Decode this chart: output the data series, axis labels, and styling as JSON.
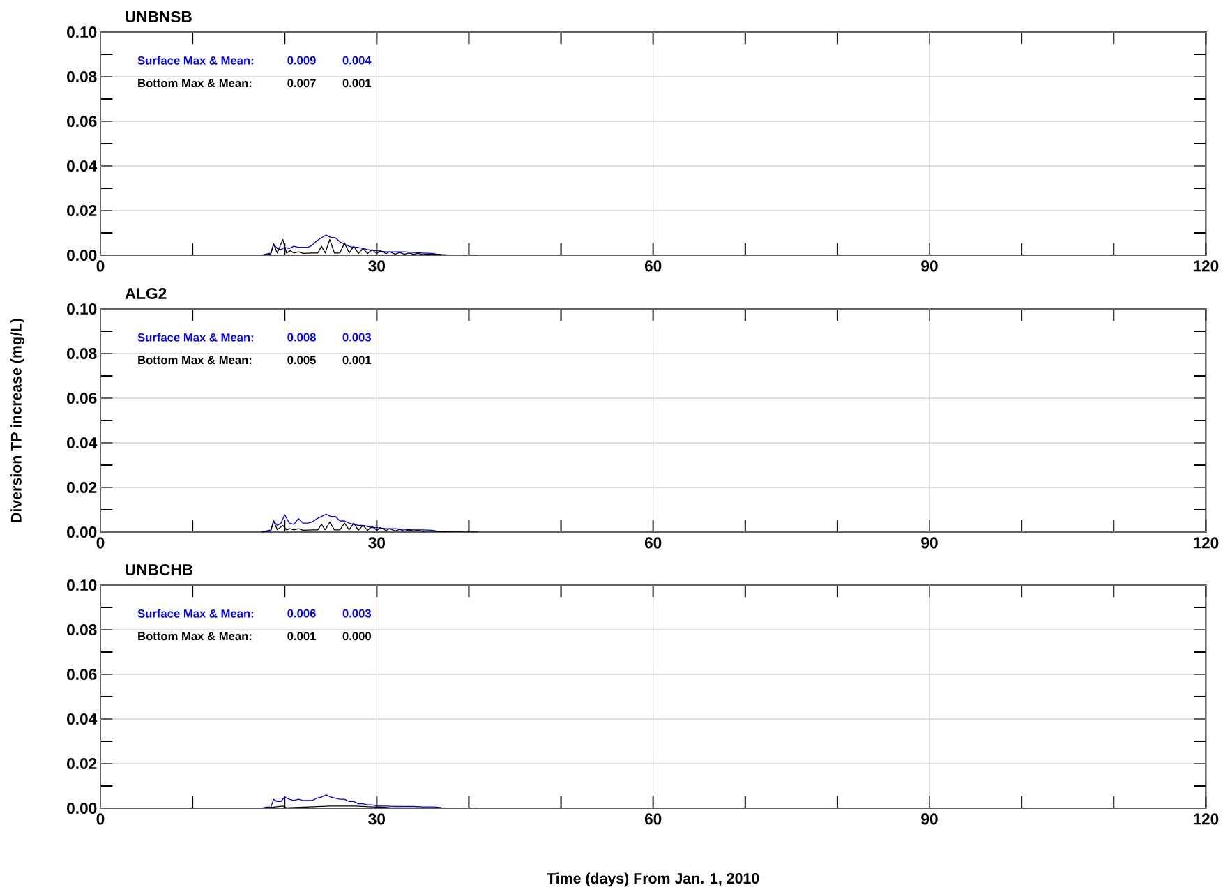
{
  "chart_data": [
    {
      "type": "line",
      "title": "UNBNSB",
      "xlim": [
        0,
        120
      ],
      "ylim": [
        0,
        0.1
      ],
      "xticks": [
        0,
        30,
        60,
        90,
        120
      ],
      "yticks": [
        {
          "value": 0,
          "label": "0.00"
        },
        {
          "value": 0.02,
          "label": "0.02"
        },
        {
          "value": 0.04,
          "label": "0.04"
        },
        {
          "value": 0.06,
          "label": "0.06"
        },
        {
          "value": 0.08,
          "label": "0.08"
        },
        {
          "value": 0.1,
          "label": "0.10"
        }
      ],
      "grid": true,
      "annotations": [
        "Surface Max & Mean:",
        "0.009",
        "0.004",
        "Bottom Max & Mean:",
        "0.007",
        "0.001"
      ],
      "series": [
        {
          "color": "#0000ff",
          "x": [
            17.5,
            18,
            18.5,
            18.8,
            19.2,
            19.6,
            20,
            20.5,
            21,
            21.5,
            22,
            22.5,
            23,
            23.5,
            24,
            24.5,
            25,
            25.5,
            26,
            26.5,
            27,
            27.5,
            28,
            28.5,
            29,
            29.5,
            30,
            31,
            32,
            33,
            34,
            35,
            36,
            36.5,
            37
          ],
          "values": [
            0,
            0.0005,
            0.001,
            0.005,
            0.003,
            0.0025,
            0.0035,
            0.003,
            0.004,
            0.0035,
            0.0035,
            0.0035,
            0.0045,
            0.0065,
            0.0078,
            0.009,
            0.008,
            0.0078,
            0.006,
            0.005,
            0.004,
            0.0035,
            0.0035,
            0.003,
            0.0025,
            0.0022,
            0.002,
            0.0015,
            0.0015,
            0.0015,
            0.0012,
            0.001,
            0.0008,
            0.0005,
            0.0003
          ]
        },
        {
          "color": "#000000",
          "x": [
            17.5,
            18.5,
            18.8,
            19.2,
            19.8,
            20.2,
            20.6,
            21,
            21.5,
            22,
            23,
            23.6,
            24,
            24.4,
            24.9,
            25.4,
            26,
            26.5,
            27,
            27.5,
            28,
            28.5,
            29,
            29.5,
            30,
            30.4,
            31,
            31.4,
            32,
            32.5,
            33,
            33.5,
            34,
            34.5,
            35,
            35.5,
            36.5,
            38,
            41
          ],
          "values": [
            0,
            0.0005,
            0.005,
            0.001,
            0.007,
            0.001,
            0.002,
            0.001,
            0.0015,
            0.0008,
            0.001,
            0.001,
            0.004,
            0.001,
            0.007,
            0.001,
            0.001,
            0.0055,
            0.001,
            0.004,
            0.0008,
            0.003,
            0.0008,
            0.0025,
            0.0008,
            0.002,
            0.0007,
            0.0015,
            0.0005,
            0.0012,
            0.0004,
            0.001,
            0.0004,
            0.0008,
            0.0003,
            0.0005,
            0.0003,
            0.0001,
            0
          ]
        }
      ]
    },
    {
      "type": "line",
      "title": "ALG2",
      "ylabel": "Diversion TP increase (mg/L)",
      "xlim": [
        0,
        120
      ],
      "ylim": [
        0,
        0.1
      ],
      "xticks": [
        0,
        30,
        60,
        90,
        120
      ],
      "yticks": [
        {
          "value": 0,
          "label": "0.00"
        },
        {
          "value": 0.02,
          "label": "0.02"
        },
        {
          "value": 0.04,
          "label": "0.04"
        },
        {
          "value": 0.06,
          "label": "0.06"
        },
        {
          "value": 0.08,
          "label": "0.08"
        },
        {
          "value": 0.1,
          "label": "0.10"
        }
      ],
      "grid": true,
      "annotations": [
        "Surface Max & Mean:",
        "0.008",
        "0.003",
        "Bottom Max & Mean:",
        "0.005",
        "0.001"
      ],
      "series": [
        {
          "color": "#0000ff",
          "x": [
            17.5,
            18,
            18.5,
            18.8,
            19.2,
            19.6,
            20,
            20.5,
            21,
            21.5,
            22,
            22.5,
            23,
            23.5,
            24,
            24.5,
            25,
            25.5,
            26,
            26.5,
            27,
            27.5,
            28,
            28.5,
            29,
            29.5,
            30,
            31,
            32,
            33,
            34,
            35,
            36,
            36.5,
            37
          ],
          "values": [
            0,
            0.0005,
            0.001,
            0.005,
            0.003,
            0.004,
            0.0078,
            0.004,
            0.0035,
            0.006,
            0.004,
            0.004,
            0.0045,
            0.006,
            0.007,
            0.008,
            0.007,
            0.007,
            0.005,
            0.005,
            0.004,
            0.0035,
            0.003,
            0.003,
            0.0025,
            0.002,
            0.002,
            0.0015,
            0.0015,
            0.0012,
            0.001,
            0.001,
            0.0008,
            0.0005,
            0.0003
          ]
        },
        {
          "color": "#000000",
          "x": [
            17.5,
            18.5,
            18.8,
            19.2,
            19.8,
            20.2,
            20.6,
            21,
            21.5,
            22,
            23,
            23.6,
            24,
            24.4,
            24.9,
            25.4,
            26,
            26.5,
            27,
            27.5,
            28,
            28.5,
            29,
            29.5,
            30,
            30.4,
            31,
            31.4,
            32,
            32.5,
            33,
            33.5,
            34,
            34.5,
            35,
            35.5,
            36.5,
            38,
            41
          ],
          "values": [
            0,
            0.0005,
            0.005,
            0.001,
            0.003,
            0.001,
            0.0015,
            0.001,
            0.0015,
            0.0008,
            0.001,
            0.001,
            0.0035,
            0.001,
            0.0045,
            0.001,
            0.001,
            0.004,
            0.001,
            0.004,
            0.0008,
            0.003,
            0.0008,
            0.0025,
            0.0008,
            0.002,
            0.0007,
            0.0015,
            0.0005,
            0.0012,
            0.0004,
            0.001,
            0.0004,
            0.0008,
            0.0003,
            0.0005,
            0.0003,
            0.0001,
            0
          ]
        }
      ]
    },
    {
      "type": "line",
      "title": "UNBCHB",
      "xlabel": "Time (days) From Jan. 1, 2010",
      "xlim": [
        0,
        120
      ],
      "ylim": [
        0,
        0.1
      ],
      "xticks": [
        0,
        30,
        60,
        90,
        120
      ],
      "yticks": [
        {
          "value": 0,
          "label": "0.00"
        },
        {
          "value": 0.02,
          "label": "0.02"
        },
        {
          "value": 0.04,
          "label": "0.04"
        },
        {
          "value": 0.06,
          "label": "0.06"
        },
        {
          "value": 0.08,
          "label": "0.08"
        },
        {
          "value": 0.1,
          "label": "0.10"
        }
      ],
      "grid": true,
      "annotations": [
        "Surface Max & Mean:",
        "0.006",
        "0.003",
        "Bottom Max & Mean:",
        "0.001",
        "0.000"
      ],
      "series": [
        {
          "color": "#0000ff",
          "x": [
            0,
            17.5,
            18,
            18.5,
            18.8,
            19.2,
            19.6,
            20,
            20.5,
            21,
            21.5,
            22,
            22.5,
            23,
            23.5,
            24,
            24.5,
            25,
            25.5,
            26,
            26.5,
            27,
            27.5,
            28,
            28.5,
            29,
            29.5,
            30,
            31,
            32,
            33,
            34,
            35,
            36,
            36.5,
            37
          ],
          "values": [
            0,
            0,
            0.0005,
            0.0005,
            0.004,
            0.003,
            0.003,
            0.005,
            0.004,
            0.0035,
            0.004,
            0.0035,
            0.0035,
            0.0035,
            0.0045,
            0.005,
            0.006,
            0.005,
            0.0045,
            0.004,
            0.004,
            0.003,
            0.003,
            0.002,
            0.002,
            0.0015,
            0.0015,
            0.001,
            0.001,
            0.0008,
            0.0008,
            0.0008,
            0.0006,
            0.0006,
            0.0005,
            0.0003
          ]
        },
        {
          "color": "#000000",
          "x": [
            0,
            17.5,
            18.8,
            19.8,
            20.2,
            24,
            24.9,
            26.5,
            27.5,
            28.5,
            29.5,
            30.4,
            31.4,
            41
          ],
          "values": [
            0,
            0,
            0.0005,
            0.001,
            0.0002,
            0.0008,
            0.001,
            0.001,
            0.001,
            0.0008,
            0.0006,
            0.0005,
            0.0003,
            0
          ]
        }
      ]
    }
  ]
}
